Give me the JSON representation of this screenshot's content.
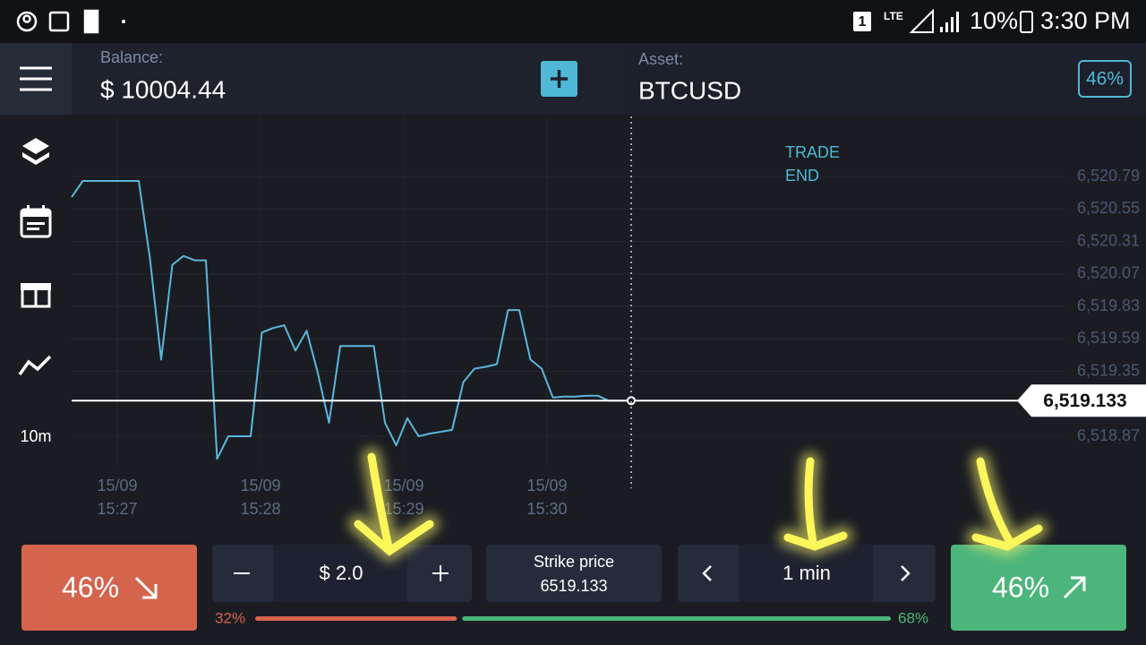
{
  "status_bar": {
    "sim": "1",
    "network": "LTE",
    "battery": "10%",
    "time": "3:30 PM"
  },
  "header": {
    "balance_label": "Balance:",
    "balance": "$ 10004.44",
    "asset_label": "Asset:",
    "asset": "BTCUSD",
    "payout": "46%"
  },
  "sidebar": {
    "timeframe": "10m"
  },
  "price_chart": {
    "trade_end": [
      "TRADE",
      "END"
    ],
    "yticks": [
      {
        "value": 6520.79,
        "label": "6,520.79"
      },
      {
        "value": 6520.55,
        "label": "6,520.55"
      },
      {
        "value": 6520.31,
        "label": "6,520.31"
      },
      {
        "value": 6520.07,
        "label": "6,520.07"
      },
      {
        "value": 6519.83,
        "label": "6,519.83"
      },
      {
        "value": 6519.59,
        "label": "6,519.59"
      },
      {
        "value": 6519.35,
        "label": "6,519.35"
      },
      {
        "value": 6518.87,
        "label": "6,518.87"
      }
    ],
    "xticks": [
      {
        "date": "15/09",
        "time": "15:27"
      },
      {
        "date": "15/09",
        "time": "15:28"
      },
      {
        "date": "15/09",
        "time": "15:29"
      },
      {
        "date": "15/09",
        "time": "15:30"
      }
    ],
    "current_price": {
      "value": 6519.133,
      "label": "6,519.133"
    },
    "values": [
      6520.637,
      6520.757,
      6520.757,
      6520.757,
      6520.757,
      6520.757,
      6520.757,
      6520.183,
      6519.437,
      6520.137,
      6520.203,
      6520.17,
      6520.17,
      6518.703,
      6518.87,
      6518.87,
      6518.87,
      6519.637,
      6519.67,
      6519.69,
      6519.503,
      6519.65,
      6519.337,
      6518.97,
      6519.537,
      6519.537,
      6519.537,
      6519.537,
      6518.97,
      6518.803,
      6519.003,
      6518.87,
      6518.89,
      6518.903,
      6518.917,
      6519.27,
      6519.37,
      6519.383,
      6519.403,
      6519.803,
      6519.803,
      6519.437,
      6519.37,
      6519.157,
      6519.163,
      6519.163,
      6519.17,
      6519.17,
      6519.133,
      6519.133,
      6519.133
    ]
  },
  "trade_panel": {
    "put_payout": "46%",
    "amount": "$ 2.0",
    "strike_label": "Strike price",
    "strike_price": "6519.133",
    "duration": "1 min",
    "call_payout": "46%",
    "sentiment_down": {
      "value": 32,
      "label": "32%"
    },
    "sentiment_up": {
      "value": 68,
      "label": "68%"
    }
  }
}
